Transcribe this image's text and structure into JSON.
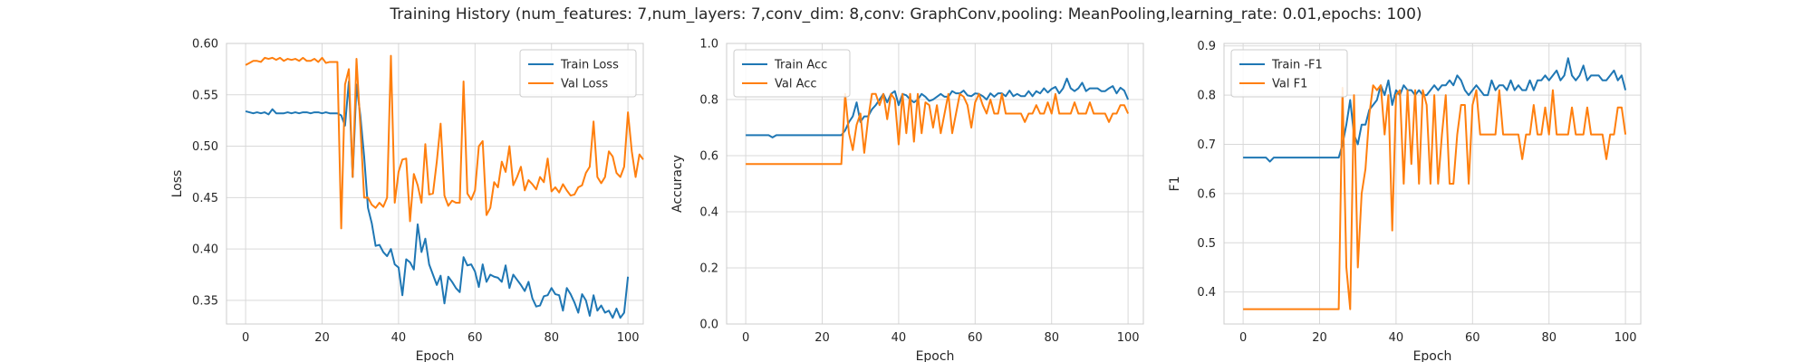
{
  "figure": {
    "title": "Training History (num_features: 7,num_layers: 7,conv_dim: 8,conv: GraphConv,pooling: MeanPooling,learning_rate: 0.01,epochs: 100)"
  },
  "chart_data": [
    {
      "type": "line",
      "xlabel": "Epoch",
      "ylabel": "Loss",
      "xlim": [
        -5,
        104
      ],
      "ylim": [
        0.327,
        0.6
      ],
      "xticks": [
        0,
        20,
        40,
        60,
        80,
        100
      ],
      "yticks": [
        0.35,
        0.4,
        0.45,
        0.5,
        0.55,
        0.6
      ],
      "ytick_labels": [
        "0.35",
        "0.40",
        "0.45",
        "0.50",
        "0.55",
        "0.60"
      ],
      "grid": true,
      "legend": "upper right",
      "series": [
        {
          "name": "Train Loss",
          "color": "#1f77b4",
          "values": [
            0.534,
            0.533,
            0.532,
            0.533,
            0.532,
            0.533,
            0.531,
            0.536,
            0.532,
            0.532,
            0.532,
            0.533,
            0.532,
            0.533,
            0.532,
            0.533,
            0.533,
            0.532,
            0.533,
            0.533,
            0.532,
            0.533,
            0.532,
            0.532,
            0.532,
            0.53,
            0.52,
            0.563,
            0.47,
            0.56,
            0.53,
            0.49,
            0.44,
            0.425,
            0.403,
            0.404,
            0.397,
            0.393,
            0.4,
            0.385,
            0.382,
            0.355,
            0.39,
            0.387,
            0.38,
            0.424,
            0.397,
            0.41,
            0.385,
            0.375,
            0.365,
            0.374,
            0.347,
            0.373,
            0.368,
            0.362,
            0.358,
            0.392,
            0.384,
            0.385,
            0.378,
            0.363,
            0.385,
            0.368,
            0.375,
            0.373,
            0.372,
            0.368,
            0.384,
            0.362,
            0.375,
            0.37,
            0.365,
            0.359,
            0.368,
            0.352,
            0.344,
            0.345,
            0.354,
            0.355,
            0.362,
            0.356,
            0.355,
            0.34,
            0.362,
            0.356,
            0.348,
            0.338,
            0.356,
            0.35,
            0.335,
            0.355,
            0.34,
            0.345,
            0.338,
            0.34,
            0.333,
            0.342,
            0.333,
            0.338,
            0.373
          ]
        },
        {
          "name": "Val Loss",
          "color": "#ff7f0e",
          "values": [
            0.579,
            0.581,
            0.583,
            0.583,
            0.582,
            0.586,
            0.585,
            0.586,
            0.584,
            0.586,
            0.583,
            0.585,
            0.584,
            0.585,
            0.583,
            0.586,
            0.583,
            0.583,
            0.585,
            0.582,
            0.586,
            0.581,
            0.582,
            0.582,
            0.582,
            0.42,
            0.56,
            0.575,
            0.47,
            0.585,
            0.52,
            0.45,
            0.45,
            0.443,
            0.44,
            0.445,
            0.441,
            0.45,
            0.588,
            0.445,
            0.475,
            0.487,
            0.488,
            0.427,
            0.473,
            0.462,
            0.445,
            0.502,
            0.453,
            0.454,
            0.485,
            0.522,
            0.452,
            0.442,
            0.447,
            0.445,
            0.445,
            0.563,
            0.454,
            0.448,
            0.457,
            0.5,
            0.505,
            0.433,
            0.44,
            0.465,
            0.46,
            0.485,
            0.475,
            0.5,
            0.462,
            0.47,
            0.48,
            0.457,
            0.467,
            0.463,
            0.458,
            0.47,
            0.465,
            0.488,
            0.456,
            0.46,
            0.455,
            0.463,
            0.457,
            0.452,
            0.453,
            0.46,
            0.462,
            0.474,
            0.48,
            0.524,
            0.47,
            0.464,
            0.47,
            0.495,
            0.49,
            0.474,
            0.47,
            0.48,
            0.533,
            0.495,
            0.47,
            0.492,
            0.487
          ]
        }
      ]
    },
    {
      "type": "line",
      "xlabel": "Epoch",
      "ylabel": "Accuracy",
      "xlim": [
        -5,
        104
      ],
      "ylim": [
        0.0,
        1.0
      ],
      "xticks": [
        0,
        20,
        40,
        60,
        80,
        100
      ],
      "yticks": [
        0.0,
        0.2,
        0.4,
        0.6,
        0.8,
        1.0
      ],
      "ytick_labels": [
        "0.0",
        "0.2",
        "0.4",
        "0.6",
        "0.8",
        "1.0"
      ],
      "grid": true,
      "legend": "upper left",
      "series": [
        {
          "name": "Train Acc",
          "color": "#1f77b4",
          "values": [
            0.673,
            0.673,
            0.673,
            0.673,
            0.673,
            0.673,
            0.673,
            0.665,
            0.673,
            0.673,
            0.673,
            0.673,
            0.673,
            0.673,
            0.673,
            0.673,
            0.673,
            0.673,
            0.673,
            0.673,
            0.673,
            0.673,
            0.673,
            0.673,
            0.673,
            0.673,
            0.69,
            0.72,
            0.74,
            0.79,
            0.72,
            0.74,
            0.74,
            0.765,
            0.78,
            0.8,
            0.82,
            0.79,
            0.82,
            0.83,
            0.78,
            0.82,
            0.815,
            0.8,
            0.79,
            0.8,
            0.82,
            0.81,
            0.795,
            0.8,
            0.81,
            0.82,
            0.81,
            0.81,
            0.83,
            0.822,
            0.822,
            0.832,
            0.815,
            0.812,
            0.822,
            0.82,
            0.812,
            0.8,
            0.822,
            0.81,
            0.822,
            0.822,
            0.812,
            0.832,
            0.812,
            0.82,
            0.812,
            0.812,
            0.83,
            0.812,
            0.83,
            0.822,
            0.84,
            0.825,
            0.838,
            0.845,
            0.822,
            0.84,
            0.875,
            0.84,
            0.83,
            0.84,
            0.86,
            0.83,
            0.84,
            0.84,
            0.84,
            0.83,
            0.83,
            0.84,
            0.848,
            0.822,
            0.842,
            0.832,
            0.8
          ]
        },
        {
          "name": "Val Acc",
          "color": "#ff7f0e",
          "values": [
            0.57,
            0.57,
            0.57,
            0.57,
            0.57,
            0.57,
            0.57,
            0.57,
            0.57,
            0.57,
            0.57,
            0.57,
            0.57,
            0.57,
            0.57,
            0.57,
            0.57,
            0.57,
            0.57,
            0.57,
            0.57,
            0.57,
            0.57,
            0.57,
            0.57,
            0.57,
            0.82,
            0.68,
            0.62,
            0.71,
            0.75,
            0.61,
            0.73,
            0.82,
            0.82,
            0.78,
            0.82,
            0.73,
            0.82,
            0.8,
            0.64,
            0.82,
            0.68,
            0.82,
            0.65,
            0.82,
            0.68,
            0.79,
            0.78,
            0.7,
            0.78,
            0.68,
            0.75,
            0.82,
            0.68,
            0.75,
            0.82,
            0.81,
            0.78,
            0.7,
            0.79,
            0.82,
            0.78,
            0.75,
            0.8,
            0.75,
            0.75,
            0.82,
            0.75,
            0.75,
            0.75,
            0.75,
            0.75,
            0.72,
            0.75,
            0.75,
            0.78,
            0.75,
            0.75,
            0.79,
            0.75,
            0.82,
            0.75,
            0.75,
            0.75,
            0.75,
            0.79,
            0.75,
            0.75,
            0.75,
            0.79,
            0.75,
            0.75,
            0.75,
            0.75,
            0.72,
            0.75,
            0.75,
            0.78,
            0.78,
            0.75
          ]
        }
      ]
    },
    {
      "type": "line",
      "xlabel": "Epoch",
      "ylabel": "F1",
      "xlim": [
        -5,
        104
      ],
      "ylim": [
        0.335,
        0.905
      ],
      "xticks": [
        0,
        20,
        40,
        60,
        80,
        100
      ],
      "yticks": [
        0.4,
        0.5,
        0.6,
        0.7,
        0.8,
        0.9
      ],
      "ytick_labels": [
        "0.4",
        "0.5",
        "0.6",
        "0.7",
        "0.8",
        "0.9"
      ],
      "grid": true,
      "legend": "upper left",
      "series": [
        {
          "name": "Train -F1",
          "color": "#1f77b4",
          "values": [
            0.673,
            0.673,
            0.673,
            0.673,
            0.673,
            0.673,
            0.673,
            0.665,
            0.673,
            0.673,
            0.673,
            0.673,
            0.673,
            0.673,
            0.673,
            0.673,
            0.673,
            0.673,
            0.673,
            0.673,
            0.673,
            0.673,
            0.673,
            0.673,
            0.673,
            0.673,
            0.7,
            0.74,
            0.79,
            0.72,
            0.7,
            0.74,
            0.74,
            0.77,
            0.78,
            0.79,
            0.82,
            0.8,
            0.83,
            0.78,
            0.81,
            0.8,
            0.82,
            0.81,
            0.81,
            0.8,
            0.81,
            0.8,
            0.8,
            0.81,
            0.82,
            0.81,
            0.82,
            0.82,
            0.83,
            0.82,
            0.84,
            0.83,
            0.81,
            0.8,
            0.81,
            0.82,
            0.81,
            0.8,
            0.8,
            0.83,
            0.81,
            0.82,
            0.82,
            0.81,
            0.83,
            0.81,
            0.82,
            0.81,
            0.81,
            0.83,
            0.81,
            0.83,
            0.83,
            0.84,
            0.83,
            0.84,
            0.85,
            0.83,
            0.84,
            0.875,
            0.84,
            0.83,
            0.84,
            0.86,
            0.83,
            0.84,
            0.84,
            0.84,
            0.83,
            0.83,
            0.84,
            0.85,
            0.83,
            0.84,
            0.81
          ]
        },
        {
          "name": "Val F1",
          "color": "#ff7f0e",
          "values": [
            0.365,
            0.365,
            0.365,
            0.365,
            0.365,
            0.365,
            0.365,
            0.365,
            0.365,
            0.365,
            0.365,
            0.365,
            0.365,
            0.365,
            0.365,
            0.365,
            0.365,
            0.365,
            0.365,
            0.365,
            0.365,
            0.365,
            0.365,
            0.365,
            0.365,
            0.365,
            0.815,
            0.45,
            0.365,
            0.8,
            0.45,
            0.6,
            0.65,
            0.76,
            0.82,
            0.81,
            0.82,
            0.72,
            0.8,
            0.525,
            0.8,
            0.81,
            0.62,
            0.81,
            0.66,
            0.81,
            0.62,
            0.81,
            0.78,
            0.62,
            0.8,
            0.62,
            0.72,
            0.8,
            0.62,
            0.62,
            0.72,
            0.78,
            0.78,
            0.62,
            0.78,
            0.81,
            0.72,
            0.72,
            0.72,
            0.72,
            0.72,
            0.81,
            0.72,
            0.72,
            0.72,
            0.72,
            0.72,
            0.67,
            0.72,
            0.72,
            0.78,
            0.72,
            0.72,
            0.775,
            0.72,
            0.81,
            0.72,
            0.72,
            0.72,
            0.72,
            0.775,
            0.72,
            0.72,
            0.72,
            0.775,
            0.72,
            0.72,
            0.72,
            0.72,
            0.67,
            0.72,
            0.72,
            0.775,
            0.775,
            0.72
          ]
        }
      ]
    }
  ]
}
